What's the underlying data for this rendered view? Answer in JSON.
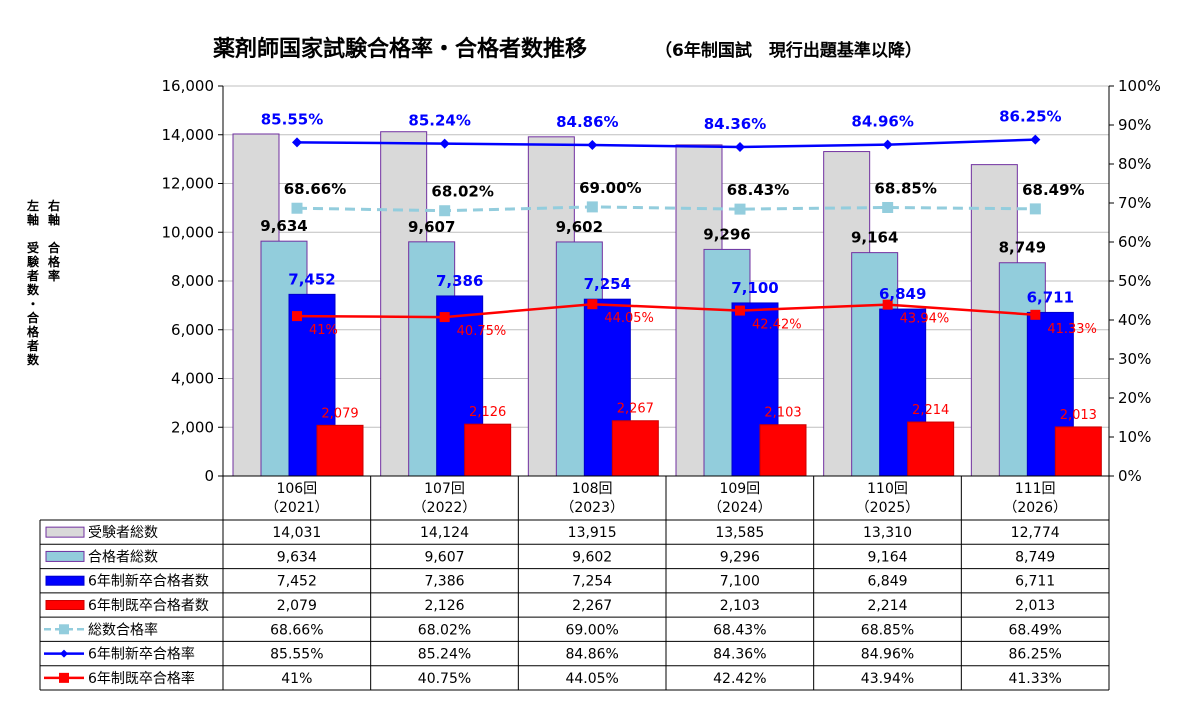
{
  "chart_data": {
    "type": "bar",
    "title": "薬剤師国家試験合格率・合格者数推移",
    "subtitle": "（6年制国試　現行出題基準以降）",
    "ylabel_left": "左軸　受験者数・合格者数",
    "ylabel_right": "右軸　合格率",
    "ylim_left": [
      0,
      16000
    ],
    "ylim_right": [
      0,
      100
    ],
    "yticks_left": [
      "0",
      "2,000",
      "4,000",
      "6,000",
      "8,000",
      "10,000",
      "12,000",
      "14,000",
      "16,000"
    ],
    "yticks_right": [
      "0%",
      "10%",
      "20%",
      "30%",
      "40%",
      "50%",
      "60%",
      "70%",
      "80%",
      "90%",
      "100%"
    ],
    "categories": [
      {
        "line1": "106回",
        "line2": "（2021）"
      },
      {
        "line1": "107回",
        "line2": "（2022）"
      },
      {
        "line1": "108回",
        "line2": "（2023）"
      },
      {
        "line1": "109回",
        "line2": "（2024）"
      },
      {
        "line1": "110回",
        "line2": "（2025）"
      },
      {
        "line1": "111回",
        "line2": "（2026）"
      }
    ],
    "bar_series": [
      {
        "name": "受験者総数",
        "color": "#d9d9d9",
        "edge": "#7030a0",
        "values": [
          14031,
          14124,
          13915,
          13585,
          13310,
          12774
        ],
        "display": [
          "14,031",
          "14,124",
          "13,915",
          "13,585",
          "13,310",
          "12,774"
        ]
      },
      {
        "name": "合格者総数",
        "color": "#92cddc",
        "edge": "#7030a0",
        "values": [
          9634,
          9607,
          9602,
          9296,
          9164,
          8749
        ],
        "display": [
          "9,634",
          "9,607",
          "9,602",
          "9,296",
          "9,164",
          "8,749"
        ]
      },
      {
        "name": "6年制新卒合格者数",
        "color": "#0000ff",
        "edge": "#0000cc",
        "values": [
          7452,
          7386,
          7254,
          7100,
          6849,
          6711
        ],
        "display": [
          "7,452",
          "7,386",
          "7,254",
          "7,100",
          "6,849",
          "6,711"
        ]
      },
      {
        "name": "6年制既卒合格者数",
        "color": "#ff0000",
        "edge": "#cc0000",
        "values": [
          2079,
          2126,
          2267,
          2103,
          2214,
          2013
        ],
        "display": [
          "2,079",
          "2,126",
          "2,267",
          "2,103",
          "2,214",
          "2,013"
        ]
      }
    ],
    "line_series": [
      {
        "name": "総数合格率",
        "color": "#93cddd",
        "dashed": true,
        "marker": "square",
        "values": [
          68.66,
          68.02,
          69.0,
          68.43,
          68.85,
          68.49
        ],
        "display": [
          "68.66%",
          "68.02%",
          "69.00%",
          "68.43%",
          "68.85%",
          "68.49%"
        ]
      },
      {
        "name": "6年制新卒合格率",
        "color": "#0000ff",
        "dashed": false,
        "marker": "diamond",
        "values": [
          85.55,
          85.24,
          84.86,
          84.36,
          84.96,
          86.25
        ],
        "display": [
          "85.55%",
          "85.24%",
          "84.86%",
          "84.36%",
          "84.96%",
          "86.25%"
        ]
      },
      {
        "name": "6年制既卒合格率",
        "color": "#ff0000",
        "dashed": false,
        "marker": "square",
        "values": [
          41,
          40.75,
          44.05,
          42.42,
          43.94,
          41.33
        ],
        "display": [
          "41%",
          "40.75%",
          "44.05%",
          "42.42%",
          "43.94%",
          "41.33%"
        ]
      }
    ]
  }
}
